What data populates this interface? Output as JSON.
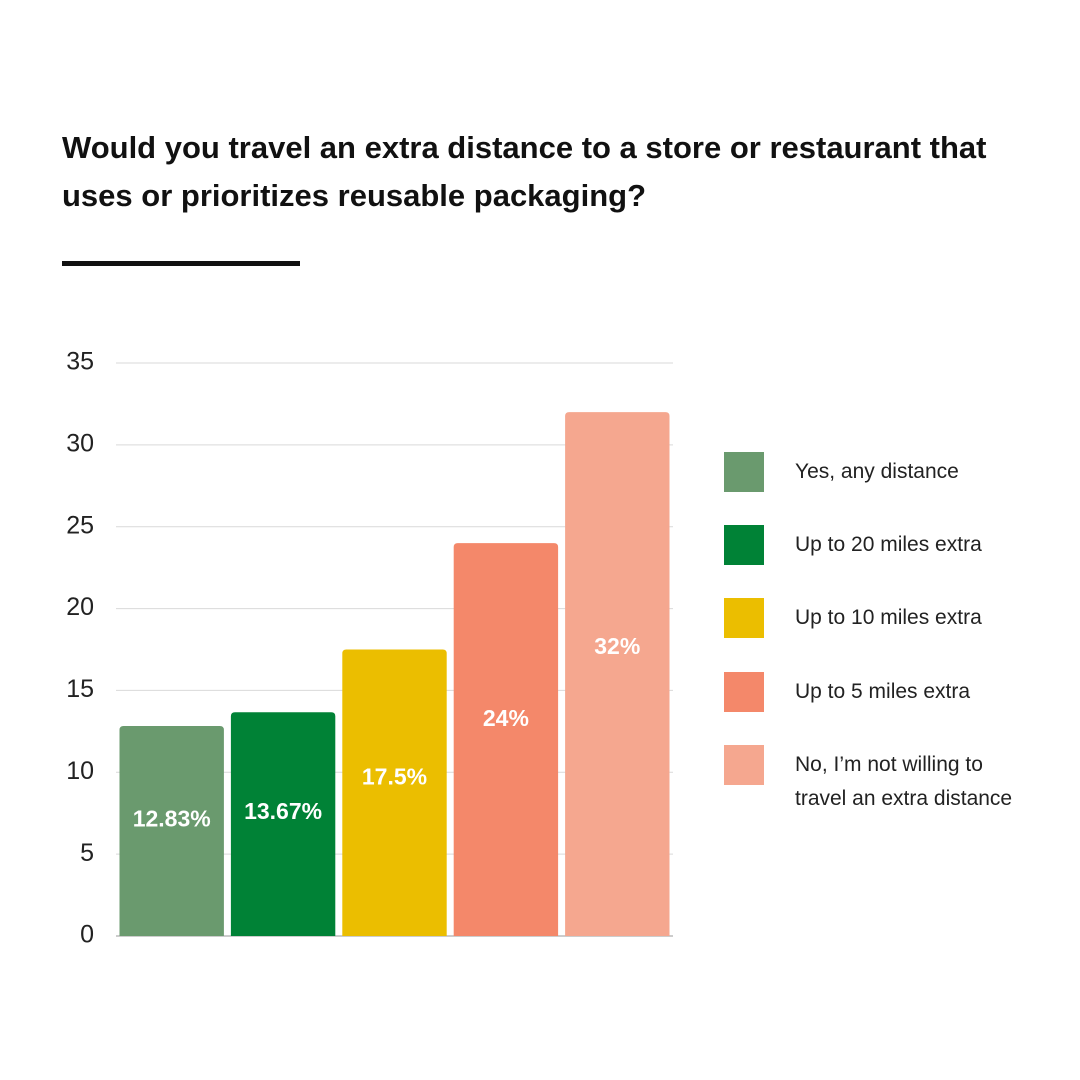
{
  "chart_data": {
    "type": "bar",
    "title": "Would you travel an extra distance to a store or restaurant that uses or prioritizes reusable packaging?",
    "series": [
      {
        "name": "Yes, any distance",
        "color": "#6a9a6e",
        "values": [
          12.83
        ],
        "value_labels": [
          "12.83%"
        ]
      },
      {
        "name": "Up to 20 miles extra",
        "color": "#008236",
        "values": [
          13.67
        ],
        "value_labels": [
          "13.67%"
        ]
      },
      {
        "name": "Up to 10 miles extra",
        "color": "#ebbe00",
        "values": [
          17.5
        ],
        "value_labels": [
          "17.5%"
        ]
      },
      {
        "name": "Up to 5 miles extra",
        "color": "#f4886a",
        "values": [
          24
        ],
        "value_labels": [
          "24%"
        ]
      },
      {
        "name": "No, I’m not willing to travel an extra distance",
        "color": "#f5a78f",
        "values": [
          32
        ],
        "value_labels": [
          "32%"
        ]
      }
    ],
    "ylim": [
      0,
      35
    ],
    "yticks": [
      0,
      5,
      10,
      15,
      20,
      25,
      30,
      35
    ],
    "grid": true,
    "legend": "right"
  }
}
